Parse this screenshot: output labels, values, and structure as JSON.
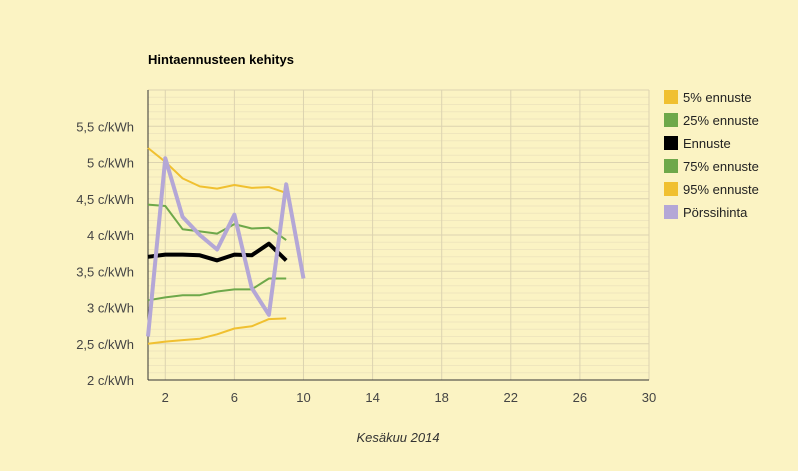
{
  "chart_data": {
    "type": "line",
    "title": "Hintaennusteen kehitys",
    "xlabel": "Kesäkuu 2014",
    "ylabel": "",
    "xlim": [
      1,
      30
    ],
    "ylim": [
      2,
      6
    ],
    "x_ticks": [
      2,
      6,
      10,
      14,
      18,
      22,
      26,
      30
    ],
    "y_ticks": [
      {
        "value": 2,
        "label": "2 c/kWh"
      },
      {
        "value": 2.5,
        "label": "2,5 c/kWh"
      },
      {
        "value": 3,
        "label": "3 c/kWh"
      },
      {
        "value": 3.5,
        "label": "3,5 c/kWh"
      },
      {
        "value": 4,
        "label": "4 c/kWh"
      },
      {
        "value": 4.5,
        "label": "4,5 c/kWh"
      },
      {
        "value": 5,
        "label": "5 c/kWh"
      },
      {
        "value": 5.5,
        "label": "5,5 c/kWh"
      }
    ],
    "grid": true,
    "legend_position": "right",
    "series": [
      {
        "name": "5% ennuste",
        "color": "#f0c030",
        "width": 2,
        "x": [
          1,
          2,
          3,
          4,
          5,
          6,
          7,
          8,
          9
        ],
        "y": [
          2.5,
          2.53,
          2.55,
          2.57,
          2.63,
          2.71,
          2.74,
          2.84,
          2.85
        ]
      },
      {
        "name": "25% ennuste",
        "color": "#6ea84a",
        "width": 2,
        "x": [
          1,
          2,
          3,
          4,
          5,
          6,
          7,
          8,
          9
        ],
        "y": [
          3.1,
          3.14,
          3.17,
          3.17,
          3.22,
          3.25,
          3.25,
          3.4,
          3.4
        ]
      },
      {
        "name": "Ennuste",
        "color": "#000000",
        "width": 4,
        "x": [
          1,
          2,
          3,
          4,
          5,
          6,
          7,
          8,
          9
        ],
        "y": [
          3.7,
          3.73,
          3.73,
          3.72,
          3.65,
          3.73,
          3.72,
          3.88,
          3.65
        ]
      },
      {
        "name": "75% ennuste",
        "color": "#6ea84a",
        "width": 2,
        "x": [
          1,
          2,
          3,
          4,
          5,
          6,
          7,
          8,
          9
        ],
        "y": [
          4.42,
          4.4,
          4.08,
          4.05,
          4.02,
          4.15,
          4.09,
          4.1,
          3.93
        ]
      },
      {
        "name": "95% ennuste",
        "color": "#f0c030",
        "width": 2,
        "x": [
          1,
          2,
          3,
          4,
          5,
          6,
          7,
          8,
          9
        ],
        "y": [
          5.2,
          5.01,
          4.78,
          4.67,
          4.64,
          4.69,
          4.65,
          4.66,
          4.58
        ]
      },
      {
        "name": "Pörssihinta",
        "color": "#b4a7d6",
        "width": 4,
        "x": [
          1,
          2,
          3,
          4,
          5,
          6,
          7,
          8,
          9,
          10
        ],
        "y": [
          2.6,
          5.06,
          4.25,
          4.0,
          3.8,
          4.28,
          3.27,
          2.9,
          4.7,
          3.4
        ]
      }
    ]
  }
}
